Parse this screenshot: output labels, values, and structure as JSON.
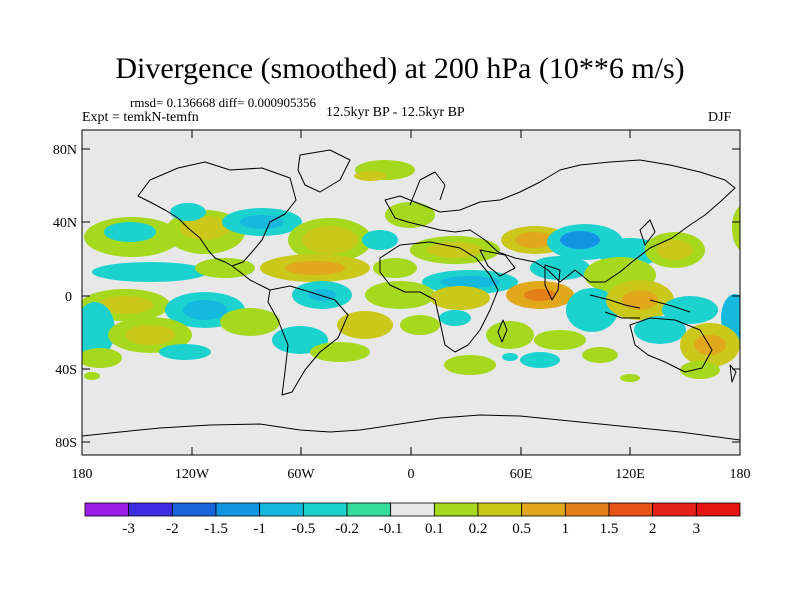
{
  "title": "Divergence (smoothed) at 200 hPa (10**6 m/s)",
  "stats": "rmsd= 0.136668 diff= 0.000905356",
  "expt": "Expt = temkN-temfn",
  "period": "12.5kyr BP - 12.5kyr BP",
  "season": "DJF",
  "lat_ticks": [
    "80N",
    "40N",
    "0",
    "40S",
    "80S"
  ],
  "lon_ticks": [
    "180",
    "120W",
    "60W",
    "0",
    "60E",
    "120E",
    "180"
  ],
  "colorbar": {
    "labels": [
      "-3",
      "-2",
      "-1.5",
      "-1",
      "-0.5",
      "-0.2",
      "-0.1",
      "0.1",
      "0.2",
      "0.5",
      "1",
      "1.5",
      "2",
      "3"
    ],
    "colors": [
      "#9a1fe6",
      "#3c2ee0",
      "#1a64dc",
      "#1295e0",
      "#16b9de",
      "#1cd2cf",
      "#34dc9a",
      "#e8e8e8",
      "#a6d81e",
      "#cac81a",
      "#e0a81a",
      "#e47e18",
      "#e65416",
      "#e4201a",
      "#e41414"
    ]
  }
}
